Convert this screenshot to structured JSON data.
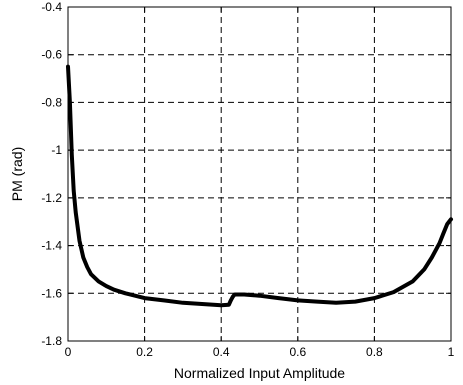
{
  "chart_data": {
    "type": "line",
    "title": "",
    "xlabel": "Normalized Input Amplitude",
    "ylabel": "PM (rad)",
    "xlim": [
      0,
      1
    ],
    "ylim": [
      -1.8,
      -0.4
    ],
    "xticks": [
      0,
      0.2,
      0.4,
      0.6,
      0.8,
      1
    ],
    "xtick_labels": [
      "0",
      "0.2",
      "0.4",
      "0.6",
      "0.8",
      "1"
    ],
    "yticks": [
      -1.8,
      -1.6,
      -1.4,
      -1.2,
      -1,
      -0.8,
      -0.6,
      -0.4
    ],
    "ytick_labels": [
      "-1.8",
      "-1.6",
      "-1.4",
      "-1.2",
      "-1",
      "-0.8",
      "-0.6",
      "-0.4"
    ],
    "grid": true,
    "legend": "none",
    "line_color": "#000000",
    "series": [
      {
        "x": [
          0,
          0.005,
          0.01,
          0.015,
          0.02,
          0.03,
          0.04,
          0.05,
          0.06,
          0.08,
          0.1,
          0.12,
          0.15,
          0.2,
          0.25,
          0.3,
          0.35,
          0.4,
          0.42,
          0.425,
          0.43,
          0.435,
          0.44,
          0.46,
          0.5,
          0.55,
          0.6,
          0.65,
          0.7,
          0.75,
          0.8,
          0.85,
          0.9,
          0.93,
          0.95,
          0.97,
          0.98,
          0.99,
          1.0
        ],
        "y": [
          -0.65,
          -0.8,
          -1.02,
          -1.17,
          -1.26,
          -1.38,
          -1.45,
          -1.49,
          -1.52,
          -1.55,
          -1.57,
          -1.585,
          -1.6,
          -1.62,
          -1.63,
          -1.64,
          -1.645,
          -1.65,
          -1.648,
          -1.63,
          -1.615,
          -1.605,
          -1.605,
          -1.605,
          -1.61,
          -1.62,
          -1.63,
          -1.635,
          -1.64,
          -1.635,
          -1.62,
          -1.595,
          -1.55,
          -1.5,
          -1.45,
          -1.39,
          -1.35,
          -1.31,
          -1.29
        ]
      }
    ]
  }
}
